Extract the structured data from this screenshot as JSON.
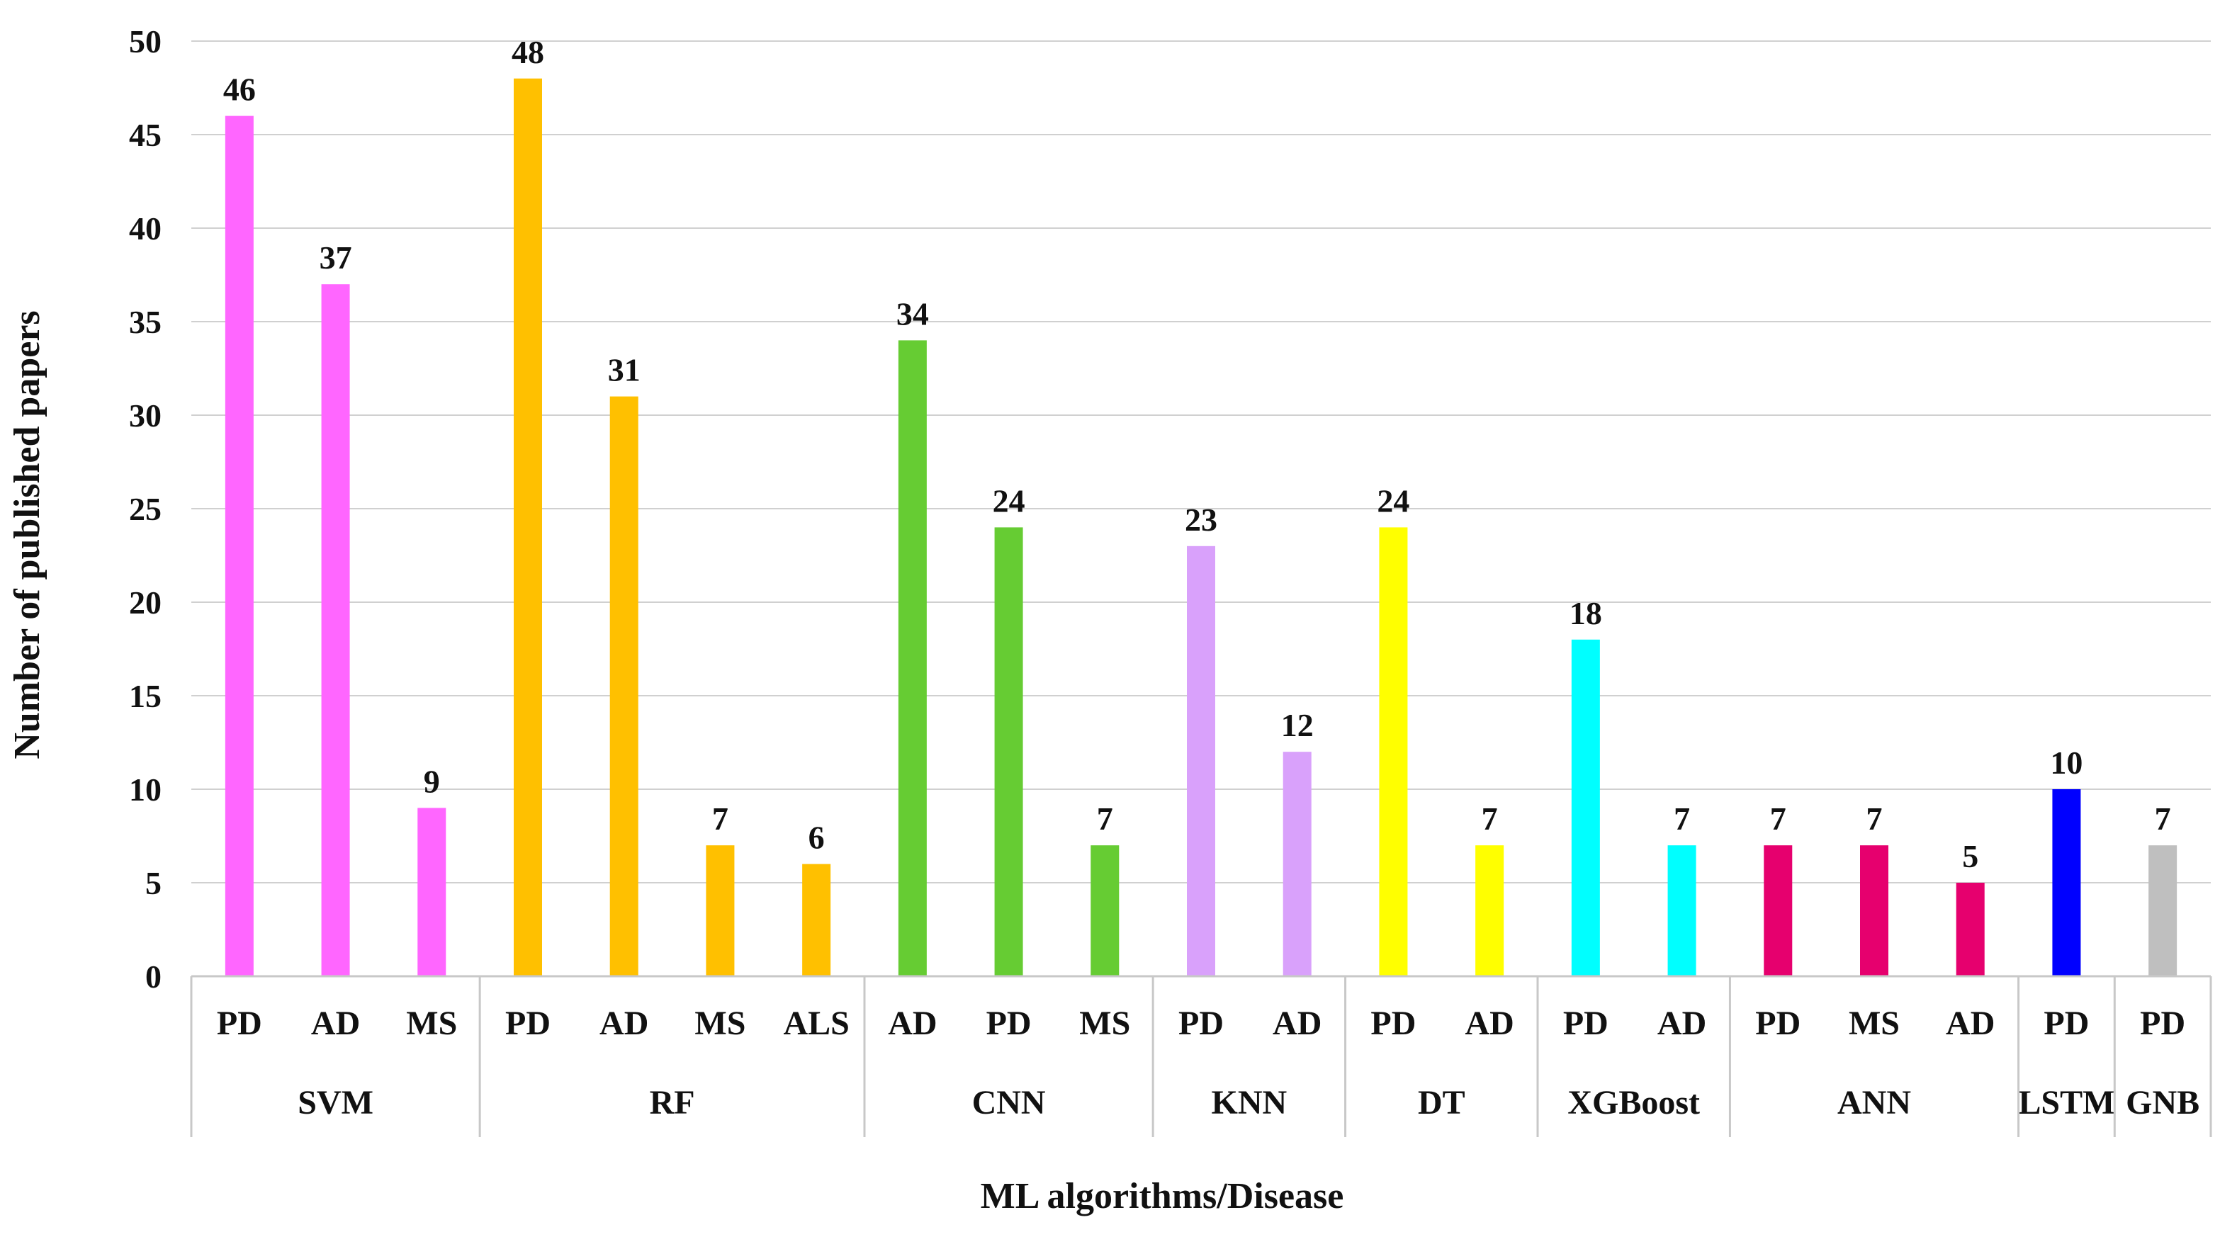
{
  "chart_data": {
    "type": "bar",
    "title": "",
    "xlabel": "ML algorithms/Disease",
    "ylabel": "Number of published papers",
    "ylim": [
      0,
      50
    ],
    "yticks": [
      0,
      5,
      10,
      15,
      20,
      25,
      30,
      35,
      40,
      45,
      50
    ],
    "grid": true,
    "legend": "none",
    "groups": [
      {
        "name": "SVM",
        "color": "#FF66FF",
        "bars": [
          {
            "label": "PD",
            "value": 46
          },
          {
            "label": "AD",
            "value": 37
          },
          {
            "label": "MS",
            "value": 9
          }
        ]
      },
      {
        "name": "RF",
        "color": "#FFC000",
        "bars": [
          {
            "label": "PD",
            "value": 48
          },
          {
            "label": "AD",
            "value": 31
          },
          {
            "label": "MS",
            "value": 7
          },
          {
            "label": "ALS",
            "value": 6
          }
        ]
      },
      {
        "name": "CNN",
        "color": "#66CC33",
        "bars": [
          {
            "label": "AD",
            "value": 34
          },
          {
            "label": "PD",
            "value": 24
          },
          {
            "label": "MS",
            "value": 7
          }
        ]
      },
      {
        "name": "KNN",
        "color": "#D9A1FB",
        "bars": [
          {
            "label": "PD",
            "value": 23
          },
          {
            "label": "AD",
            "value": 12
          }
        ]
      },
      {
        "name": "DT",
        "color": "#FFFF00",
        "bars": [
          {
            "label": "PD",
            "value": 24
          },
          {
            "label": "AD",
            "value": 7
          }
        ]
      },
      {
        "name": "XGBoost",
        "color": "#00FFFF",
        "bars": [
          {
            "label": "PD",
            "value": 18
          },
          {
            "label": "AD",
            "value": 7
          }
        ]
      },
      {
        "name": "ANN",
        "color": "#E6006E",
        "bars": [
          {
            "label": "PD",
            "value": 7
          },
          {
            "label": "MS",
            "value": 7
          },
          {
            "label": "AD",
            "value": 5
          }
        ]
      },
      {
        "name": "LSTM",
        "color": "#0000FF",
        "bars": [
          {
            "label": "PD",
            "value": 10
          }
        ]
      },
      {
        "name": "GNB",
        "color": "#BFBFBF",
        "bars": [
          {
            "label": "PD",
            "value": 7
          }
        ]
      }
    ]
  }
}
